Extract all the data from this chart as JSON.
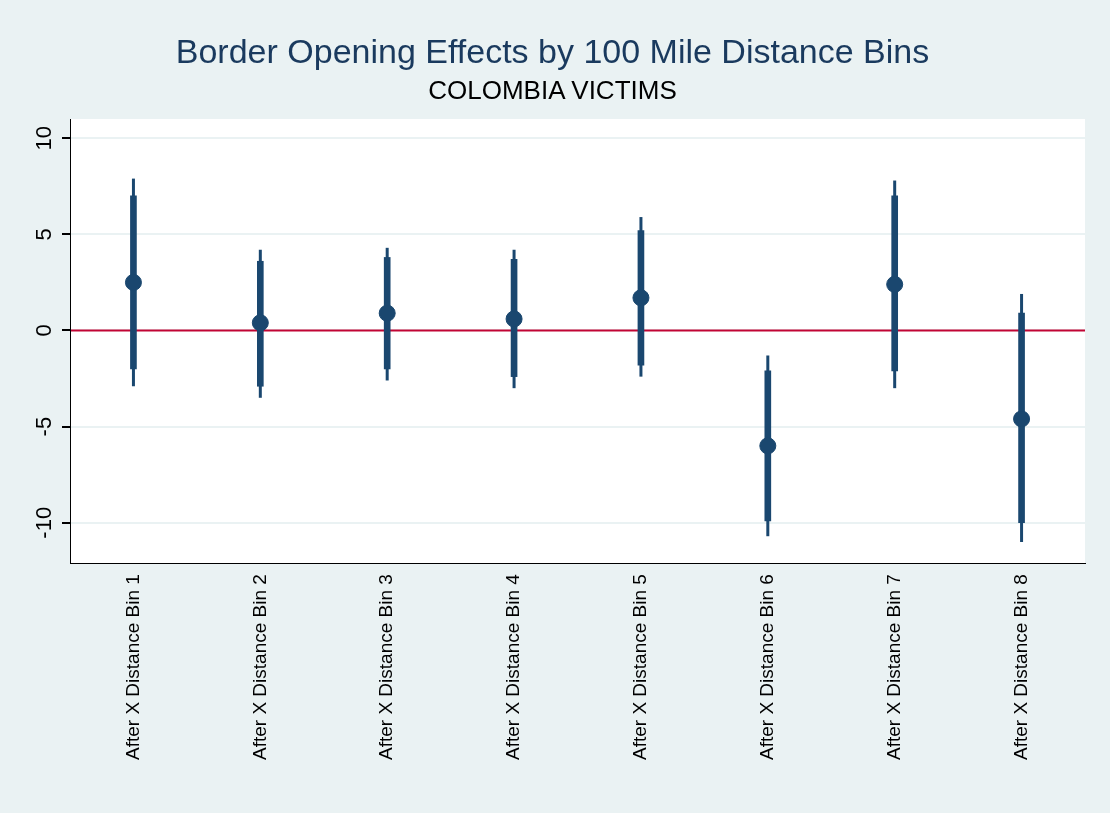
{
  "chart_data": {
    "type": "scatter",
    "title": "Border Opening Effects by 100 Mile Distance Bins",
    "subtitle": "COLOMBIA VICTIMS",
    "categories": [
      "After X Distance Bin 1",
      "After X Distance Bin 2",
      "After X Distance Bin 3",
      "After X Distance Bin 4",
      "After X Distance Bin 5",
      "After X Distance Bin 6",
      "After X Distance Bin 7",
      "After X Distance Bin 8"
    ],
    "series": [
      {
        "type": "bar",
        "color": "#1a476f",
        "base": [
          -2.0,
          -2.9,
          -2.0,
          -2.4,
          -1.8,
          -9.9,
          -2.1,
          -10.0
        ],
        "values": [
          9.0,
          6.5,
          5.8,
          6.1,
          7.0,
          7.8,
          9.1,
          10.9
        ]
      },
      {
        "color": "#1a476f",
        "values": [
          2.5,
          0.4,
          0.9,
          0.6,
          1.7,
          -6.0,
          2.4,
          -4.6
        ],
        "errors": [
          [
            -2.9,
            7.9
          ],
          [
            -3.5,
            4.2
          ],
          [
            -2.6,
            4.3
          ],
          [
            -3.0,
            4.2
          ],
          [
            -2.4,
            5.9
          ],
          [
            -10.7,
            -1.3
          ],
          [
            -3.0,
            7.8
          ],
          [
            -11.0,
            1.9
          ]
        ]
      }
    ],
    "ylim": [
      -12.1,
      11
    ],
    "yticks": [
      -10,
      -5,
      0,
      5,
      10
    ],
    "grid": "y",
    "legend": false,
    "marker": "circle",
    "ref_lines": [
      {
        "axis": "y",
        "value": 0,
        "color": "#c10534"
      }
    ]
  }
}
